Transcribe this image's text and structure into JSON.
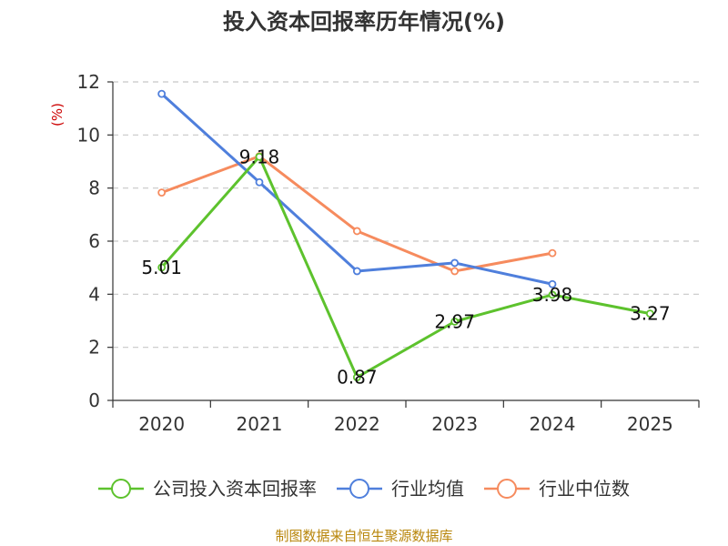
{
  "chart_data": {
    "type": "line",
    "title": "投入资本回报率历年情况(%)",
    "ylabel": "(%)",
    "xlabel": "",
    "categories": [
      "2020",
      "2021",
      "2022",
      "2023",
      "2024",
      "2025"
    ],
    "ylim": [
      0,
      12
    ],
    "yticks": [
      0,
      2,
      4,
      6,
      8,
      10,
      12
    ],
    "grid": true,
    "legend_position": "bottom",
    "series": [
      {
        "name": "公司投入资本回报率",
        "color": "#5dc22d",
        "values": [
          5.01,
          9.18,
          0.87,
          2.97,
          3.98,
          3.27
        ],
        "labels": [
          "5.01",
          "9.18",
          "0.87",
          "2.97",
          "3.98",
          "3.27"
        ]
      },
      {
        "name": "行业均值",
        "color": "#4f7fdc",
        "values": [
          11.55,
          8.22,
          4.87,
          5.18,
          4.38,
          null
        ]
      },
      {
        "name": "行业中位数",
        "color": "#f68b5e",
        "values": [
          7.83,
          9.2,
          6.38,
          4.87,
          5.55,
          null
        ]
      }
    ],
    "source": "制图数据来自恒生聚源数据库"
  }
}
